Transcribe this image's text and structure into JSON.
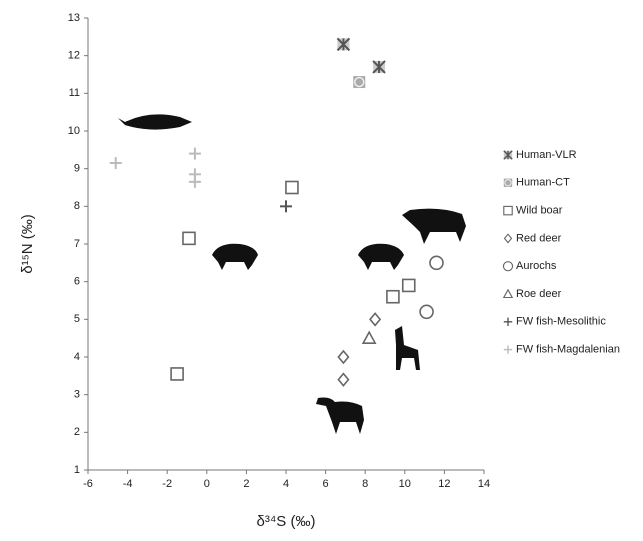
{
  "chart_data": {
    "type": "scatter",
    "xlabel": "δ³⁴S (‰)",
    "ylabel": "δ¹⁵N (‰)",
    "xlim": [
      -6,
      14
    ],
    "xticks": [
      -6,
      -4,
      -2,
      0,
      2,
      4,
      6,
      8,
      10,
      12,
      14
    ],
    "ylim": [
      1,
      13
    ],
    "yticks": [
      1,
      2,
      3,
      4,
      5,
      6,
      7,
      8,
      9,
      10,
      11,
      12,
      13
    ],
    "grid": false,
    "legend": "right",
    "series": [
      {
        "name": "Human-VLR",
        "marker": "asterisk",
        "color": "#555555",
        "x": [
          6.9,
          8.7
        ],
        "values": [
          12.3,
          11.7
        ]
      },
      {
        "name": "Human-CT",
        "marker": "circle-filled",
        "color": "#aaaaaa",
        "x": [
          7.7
        ],
        "values": [
          11.3
        ]
      },
      {
        "name": "Wild boar",
        "marker": "square",
        "color": "#666666",
        "x": [
          -1.5,
          -0.9,
          4.3,
          9.4,
          10.2
        ],
        "values": [
          3.55,
          7.15,
          8.5,
          5.6,
          5.9
        ]
      },
      {
        "name": "Red deer",
        "marker": "diamond",
        "color": "#666666",
        "x": [
          6.9,
          6.9,
          8.5
        ],
        "values": [
          4.0,
          3.4,
          5.0
        ]
      },
      {
        "name": "Aurochs",
        "marker": "circle",
        "color": "#666666",
        "x": [
          11.6,
          11.1
        ],
        "values": [
          6.5,
          5.2
        ]
      },
      {
        "name": "Roe deer",
        "marker": "triangle",
        "color": "#666666",
        "x": [
          8.2
        ],
        "values": [
          4.5
        ]
      },
      {
        "name": "FW fish-Mesolithic",
        "marker": "plus",
        "color": "#555555",
        "x": [
          4.0
        ],
        "values": [
          8.0
        ]
      },
      {
        "name": "FW fish-Magdalenian",
        "marker": "plus",
        "color": "#bbbbbb",
        "x": [
          -4.6,
          -0.6,
          -0.6,
          -0.6
        ],
        "values": [
          9.15,
          9.4,
          8.85,
          8.65
        ]
      }
    ]
  }
}
